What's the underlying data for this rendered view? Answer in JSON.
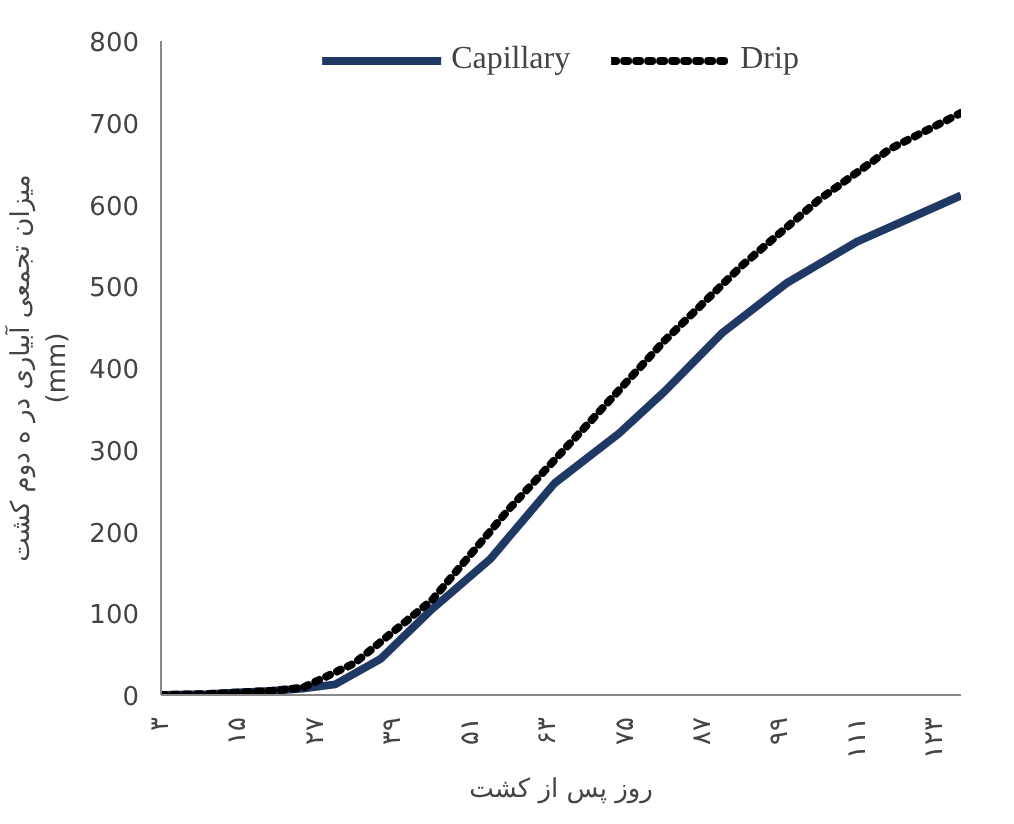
{
  "chart_data": {
    "type": "line",
    "xlabel": "روز پس از کشت",
    "ylabel": "میزان تجمعی آبیاری در ه دوم کشت\n(mm)",
    "xlim": [
      3,
      127
    ],
    "xticks": [
      {
        "value": 3,
        "label": "۳"
      },
      {
        "value": 15,
        "label": "۱۵"
      },
      {
        "value": 27,
        "label": "۲۷"
      },
      {
        "value": 39,
        "label": "۳۹"
      },
      {
        "value": 51,
        "label": "۵۱"
      },
      {
        "value": 63,
        "label": "۶۳"
      },
      {
        "value": 75,
        "label": "۷۵"
      },
      {
        "value": 87,
        "label": "۸۷"
      },
      {
        "value": 99,
        "label": "۹۹"
      },
      {
        "value": 111,
        "label": "۱۱۱"
      },
      {
        "value": 123,
        "label": "۱۲۳"
      }
    ],
    "ylim": [
      0,
      800
    ],
    "yticks": [
      0,
      100,
      200,
      300,
      400,
      500,
      600,
      700,
      800
    ],
    "grid": false,
    "legend": "top",
    "marker": "none",
    "series": [
      {
        "name": "Capillary",
        "color": "#1f3864",
        "line_style": "solid",
        "x": [
          3,
          10,
          15,
          20,
          25,
          30,
          37,
          45,
          54,
          64,
          74,
          81,
          90,
          100,
          111,
          127
        ],
        "values": [
          0,
          1,
          3,
          5,
          8,
          13,
          44,
          105,
          166,
          259,
          320,
          371,
          443,
          504,
          555,
          611
        ]
      },
      {
        "name": "Drip",
        "color": "#000000",
        "line_style": "dotted",
        "x": [
          3,
          10,
          15,
          20,
          25,
          33,
          45,
          57,
          69,
          81,
          93,
          105,
          116,
          127
        ],
        "values": [
          0,
          1,
          3,
          5,
          9,
          39,
          116,
          228,
          330,
          433,
          525,
          606,
          668,
          712
        ]
      }
    ]
  }
}
